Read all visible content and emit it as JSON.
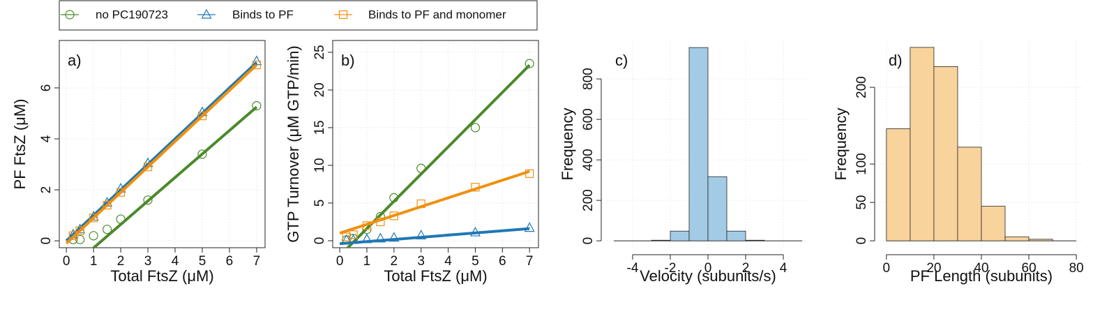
{
  "chart_data": [
    {
      "type": "scatter",
      "title": "a)",
      "xlabel": "Total FtsZ (μM)",
      "ylabel": "PF FtsZ (μM)",
      "xlim": [
        -0.26,
        7.31
      ],
      "ylim": [
        -0.27,
        7.86
      ],
      "xticks": [
        0,
        1,
        2,
        3,
        4,
        5,
        6,
        7
      ],
      "yticks": [
        0,
        2,
        4,
        6
      ],
      "grid": true,
      "x": [
        0.25,
        0.5,
        1,
        1.5,
        2,
        3,
        5,
        7
      ],
      "fit_x": [
        0,
        7
      ],
      "series": [
        {
          "name": "no PC190723",
          "color": "#4a8a2a",
          "marker": "circle",
          "values": [
            0.05,
            0.05,
            0.2,
            0.45,
            0.85,
            1.6,
            3.4,
            5.3
          ],
          "fit": [
            -1.2,
            5.25
          ]
        },
        {
          "name": "Binds to PF",
          "color": "#1f78b4",
          "marker": "triangle",
          "values": [
            0.25,
            0.45,
            0.95,
            1.5,
            2.05,
            3.05,
            5.05,
            7.05
          ],
          "fit": [
            0.0,
            7.0
          ]
        },
        {
          "name": "Binds to PF and monomer",
          "color": "#f0900f",
          "marker": "square",
          "values": [
            0.2,
            0.4,
            0.9,
            1.4,
            1.9,
            2.9,
            4.9,
            6.9
          ],
          "fit": [
            -0.1,
            6.9
          ]
        }
      ]
    },
    {
      "type": "scatter",
      "title": "b)",
      "xlabel": "Total FtsZ (μM)",
      "ylabel": "GTP Turnover (μM GTP/min)",
      "xlim": [
        -0.26,
        7.33
      ],
      "ylim": [
        -0.93,
        26.57
      ],
      "xticks": [
        0,
        1,
        2,
        3,
        4,
        5,
        6,
        7
      ],
      "yticks": [
        0,
        5,
        10,
        15,
        20,
        25
      ],
      "grid": true,
      "x": [
        0.25,
        0.5,
        1,
        1.5,
        2,
        3,
        5,
        7
      ],
      "fit_x": [
        0,
        7
      ],
      "series": [
        {
          "color": "#4a8a2a",
          "marker": "circle",
          "values": [
            0.1,
            0.3,
            1.5,
            3.2,
            5.7,
            9.6,
            15,
            23.5
          ],
          "fit": [
            -2.0,
            23.3
          ]
        },
        {
          "color": "#1f78b4",
          "marker": "triangle",
          "values": [
            0.1,
            0.1,
            0.2,
            0.3,
            0.4,
            0.7,
            1.1,
            1.7
          ],
          "fit": [
            -0.4,
            1.6
          ]
        },
        {
          "color": "#f0900f",
          "marker": "square",
          "values": [
            0.5,
            0.8,
            2,
            2.5,
            3.3,
            4.9,
            7.1,
            8.9
          ],
          "fit": [
            1.0,
            9.2
          ]
        }
      ]
    },
    {
      "type": "histogram",
      "title": "c)",
      "xlabel": "Velocity (subunits/s)",
      "ylabel": "Frequency",
      "xlim": [
        -5.37,
        5.37
      ],
      "ylim": [
        -34,
        990
      ],
      "xticks": [
        -4,
        -2,
        0,
        2,
        4
      ],
      "yticks": [
        0,
        200,
        400,
        600,
        800
      ],
      "grid": true,
      "bins": [
        -5,
        -4,
        -3,
        -2,
        -1,
        0,
        1,
        2,
        3,
        4,
        5
      ],
      "counts": [
        0,
        0,
        3,
        48,
        955,
        317,
        48,
        3,
        0,
        0
      ],
      "color": "#a3cbe5"
    },
    {
      "type": "histogram",
      "title": "d)",
      "xlabel": "PF Length (subunits)",
      "ylabel": "Frequency",
      "xlim": [
        -2.6,
        82.6
      ],
      "ylim": [
        -9,
        261
      ],
      "xticks": [
        0,
        20,
        40,
        60,
        80
      ],
      "yticks": [
        0,
        50,
        100,
        200
      ],
      "grid": true,
      "bins": [
        0,
        10,
        20,
        30,
        40,
        50,
        60,
        70,
        80
      ],
      "counts": [
        146,
        252,
        227,
        122,
        45,
        5,
        2,
        0
      ],
      "color": "#f8d39b"
    }
  ]
}
